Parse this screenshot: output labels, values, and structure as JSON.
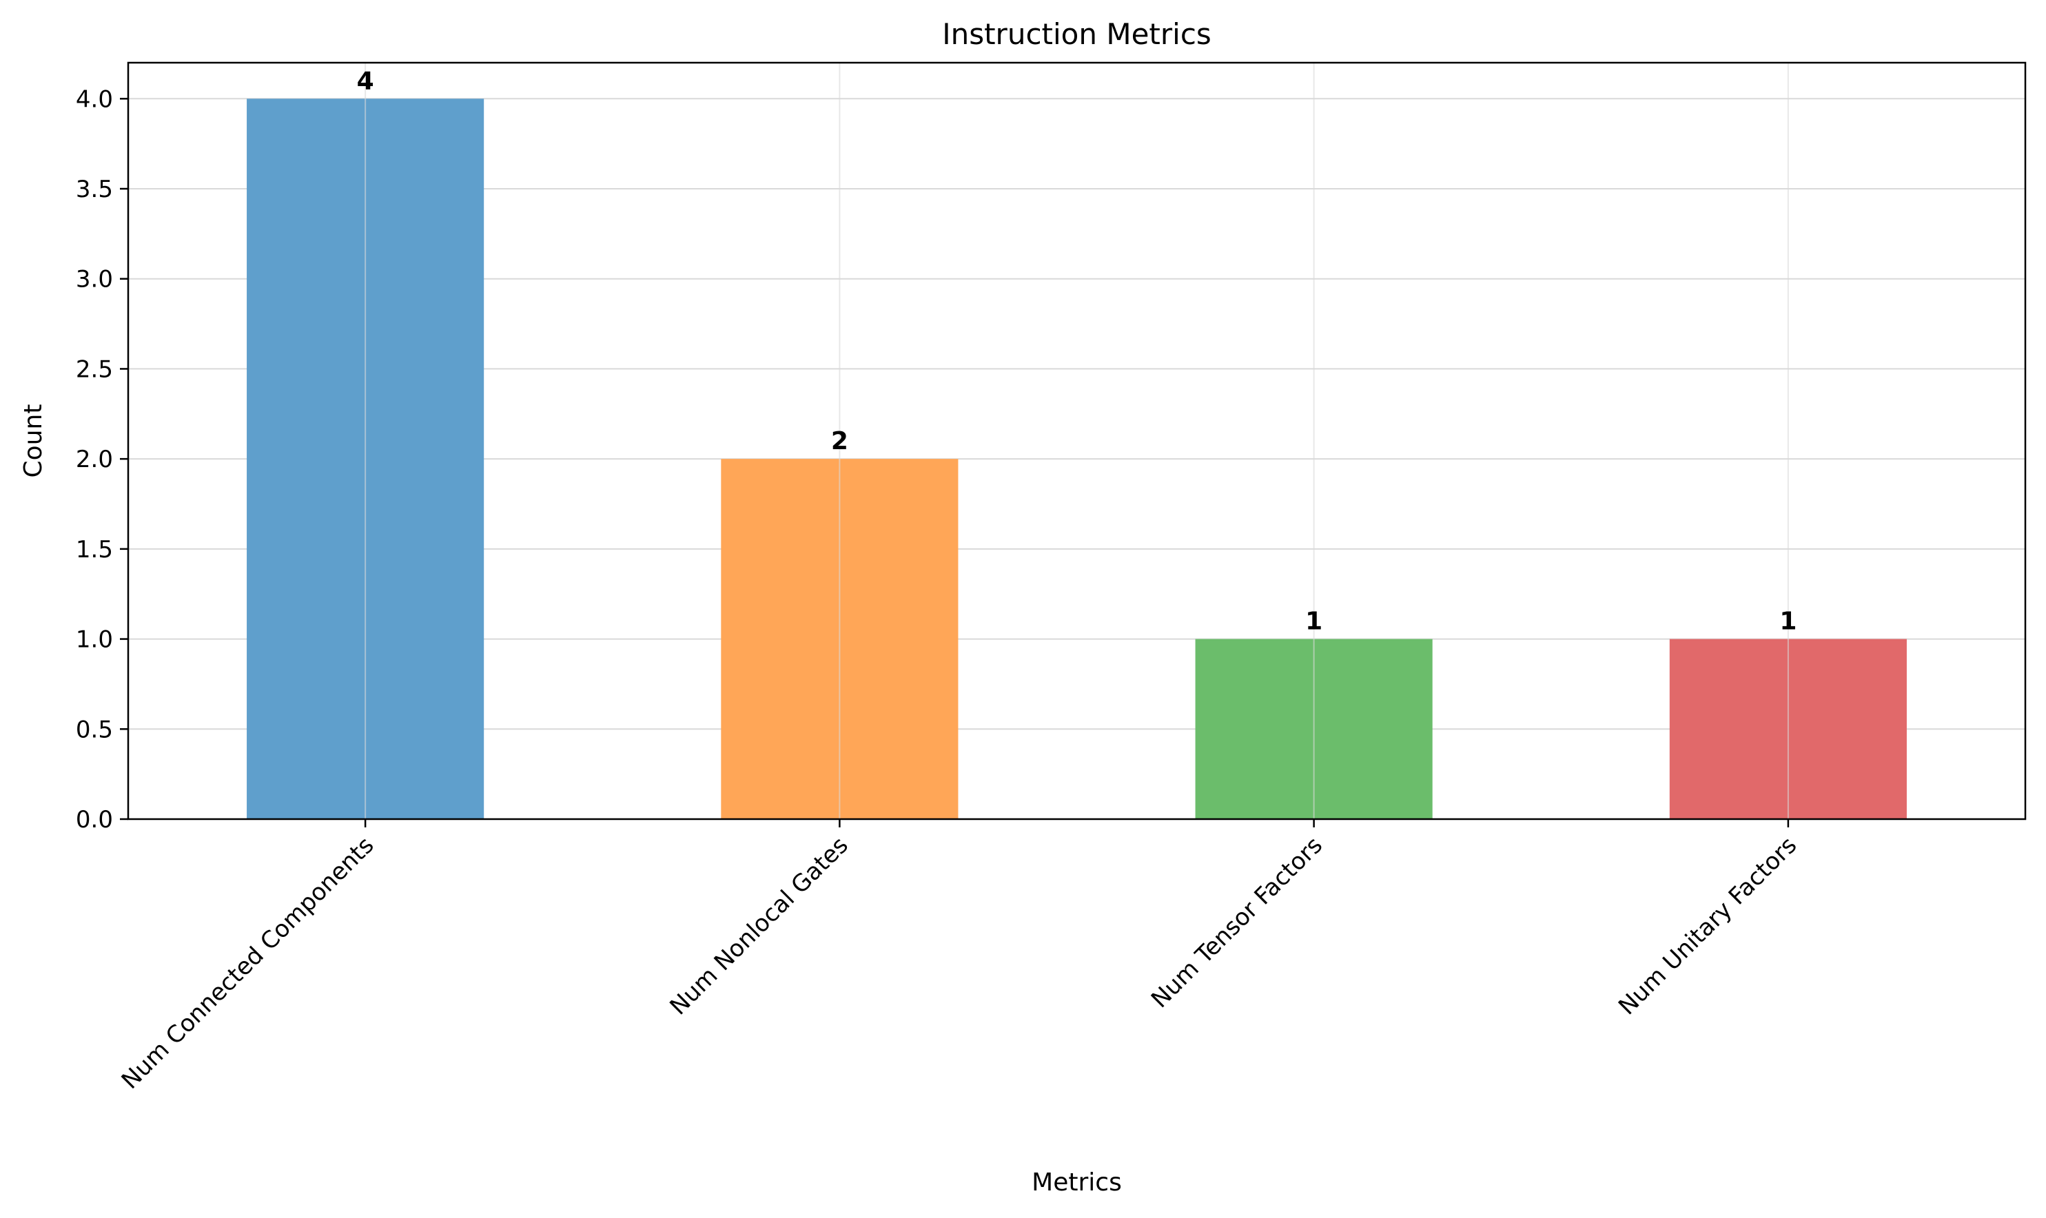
{
  "chart_data": {
    "type": "bar",
    "title": "Instruction Metrics",
    "xlabel": "Metrics",
    "ylabel": "Count",
    "categories": [
      "Num Connected Components",
      "Num Nonlocal Gates",
      "Num Tensor Factors",
      "Num Unitary Factors"
    ],
    "values": [
      4,
      2,
      1,
      1
    ],
    "data_labels": [
      "4",
      "2",
      "1",
      "1"
    ],
    "colors": [
      "#5f9fcc",
      "#ffa657",
      "#6bbd6b",
      "#e1696a"
    ],
    "ylim": [
      0,
      4.2
    ],
    "yticks": [
      0.0,
      0.5,
      1.0,
      1.5,
      2.0,
      2.5,
      3.0,
      3.5,
      4.0
    ],
    "ytick_labels": [
      "0.0",
      "0.5",
      "1.0",
      "1.5",
      "2.0",
      "2.5",
      "3.0",
      "3.5",
      "4.0"
    ],
    "grid": true,
    "legend": "none"
  }
}
